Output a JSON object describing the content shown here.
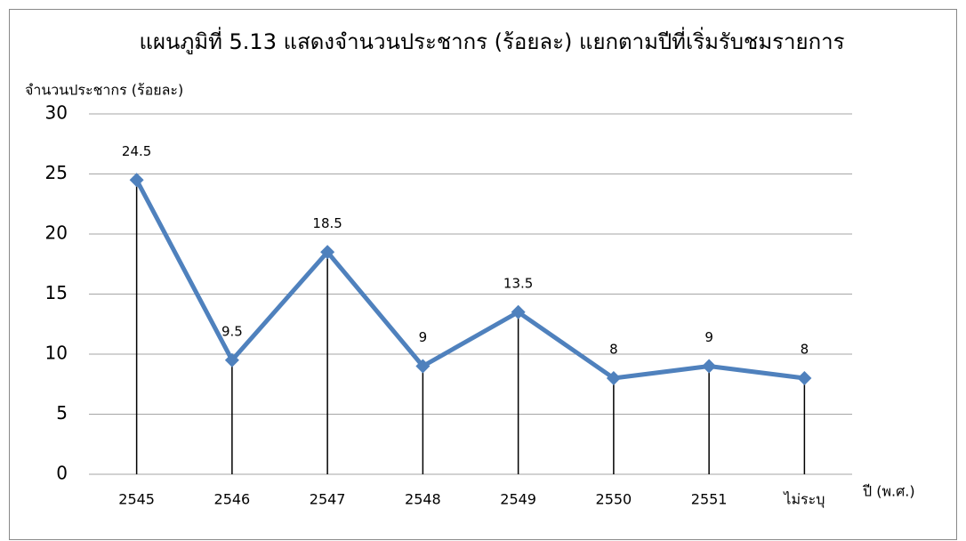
{
  "chart_data": {
    "type": "line",
    "title": "แผนภูมิที่ 5.13 แสดงจำนวนประชากร (ร้อยละ) แยกตามปีที่เริ่มรับชมรายการ",
    "y_label": "จำนวนประชากร (ร้อยละ)",
    "x_label": "ปี (พ.ศ.)",
    "categories": [
      "2545",
      "2546",
      "2547",
      "2548",
      "2549",
      "2550",
      "2551",
      "ไม่ระบุ"
    ],
    "values": [
      24.5,
      9.5,
      18.5,
      9,
      13.5,
      8,
      9,
      8
    ],
    "color": "#4f81bd",
    "ylim": [
      0,
      30
    ],
    "yticks": [
      0,
      5,
      10,
      15,
      20,
      25,
      30
    ],
    "grid": true,
    "drop_lines": true
  }
}
